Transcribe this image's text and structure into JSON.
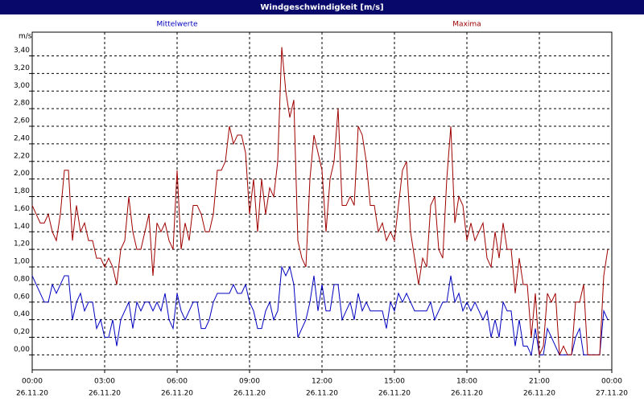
{
  "chart_data": {
    "type": "line",
    "title": "Windgeschwindigkeit [m/s]",
    "y_label": "m/s",
    "legend": "top",
    "grid": true,
    "x": [
      0,
      10,
      20,
      30,
      40,
      50,
      60,
      70,
      80,
      90,
      100,
      110,
      120,
      130,
      140,
      150,
      160,
      170,
      180,
      190,
      200,
      210,
      220,
      230,
      240,
      250,
      260,
      270,
      280,
      290,
      300,
      310,
      320,
      330,
      340,
      350,
      360,
      370,
      380,
      390,
      400,
      410,
      420,
      430,
      440,
      450,
      460,
      470,
      480,
      490,
      500,
      510,
      520,
      530,
      540,
      550,
      560,
      570,
      580,
      590,
      600,
      610,
      620,
      630,
      640,
      650,
      660,
      670,
      680,
      690,
      700,
      710,
      720,
      730,
      740,
      750,
      760,
      770,
      780,
      790,
      800,
      810,
      820,
      830,
      840,
      850,
      860,
      870,
      880,
      890,
      900,
      910,
      920,
      930,
      940,
      950,
      960,
      970,
      980,
      990,
      1000,
      1010,
      1020,
      1030,
      1040,
      1050,
      1060,
      1070,
      1080,
      1090,
      1100,
      1110,
      1120,
      1130,
      1140,
      1150,
      1160,
      1170,
      1180,
      1190,
      1200,
      1210,
      1220,
      1230,
      1240,
      1250,
      1260,
      1270,
      1280,
      1290,
      1300,
      1310,
      1320,
      1330,
      1340,
      1350,
      1360,
      1370,
      1380,
      1390,
      1400,
      1410,
      1420,
      1430
    ],
    "series": [
      {
        "name": "Mittelwerte",
        "color": "#0000c0",
        "values": [
          0.9,
          0.8,
          0.7,
          0.6,
          0.6,
          0.8,
          0.7,
          0.8,
          0.9,
          0.9,
          0.4,
          0.6,
          0.7,
          0.5,
          0.6,
          0.6,
          0.3,
          0.4,
          0.2,
          0.2,
          0.4,
          0.1,
          0.4,
          0.5,
          0.6,
          0.3,
          0.6,
          0.5,
          0.6,
          0.6,
          0.5,
          0.6,
          0.5,
          0.7,
          0.4,
          0.3,
          0.7,
          0.5,
          0.4,
          0.5,
          0.6,
          0.6,
          0.3,
          0.3,
          0.4,
          0.6,
          0.7,
          0.7,
          0.7,
          0.7,
          0.8,
          0.7,
          0.7,
          0.8,
          0.6,
          0.5,
          0.3,
          0.3,
          0.5,
          0.6,
          0.4,
          0.5,
          1.0,
          0.9,
          1.0,
          0.8,
          0.2,
          0.3,
          0.4,
          0.6,
          0.9,
          0.5,
          0.8,
          0.5,
          0.5,
          0.8,
          0.8,
          0.4,
          0.5,
          0.6,
          0.4,
          0.7,
          0.5,
          0.6,
          0.5,
          0.5,
          0.5,
          0.5,
          0.3,
          0.6,
          0.5,
          0.7,
          0.6,
          0.7,
          0.6,
          0.5,
          0.5,
          0.5,
          0.5,
          0.6,
          0.4,
          0.5,
          0.6,
          0.6,
          0.9,
          0.6,
          0.7,
          0.5,
          0.6,
          0.5,
          0.6,
          0.5,
          0.4,
          0.5,
          0.2,
          0.4,
          0.2,
          0.6,
          0.5,
          0.5,
          0.1,
          0.4,
          0.1,
          0.1,
          0.0,
          0.3,
          0.0,
          0.0,
          0.3,
          0.2,
          0.1,
          0.0,
          0.0,
          0.0,
          0.0,
          0.2,
          0.3,
          0.0,
          0.0,
          0.0,
          0.0,
          0.0,
          0.5,
          0.4
        ]
      },
      {
        "name": "Maxima",
        "color": "#a00000",
        "values": [
          1.7,
          1.6,
          1.5,
          1.5,
          1.6,
          1.4,
          1.3,
          1.6,
          2.1,
          2.1,
          1.3,
          1.7,
          1.4,
          1.5,
          1.3,
          1.3,
          1.1,
          1.1,
          1.0,
          1.1,
          1.0,
          0.8,
          1.2,
          1.3,
          1.8,
          1.4,
          1.2,
          1.2,
          1.4,
          1.6,
          0.9,
          1.5,
          1.4,
          1.5,
          1.3,
          1.2,
          2.1,
          1.2,
          1.5,
          1.3,
          1.7,
          1.7,
          1.6,
          1.4,
          1.4,
          1.6,
          2.1,
          2.1,
          2.2,
          2.6,
          2.4,
          2.5,
          2.5,
          2.3,
          1.6,
          2.0,
          1.4,
          2.0,
          1.6,
          1.9,
          1.8,
          2.2,
          3.5,
          3.0,
          2.7,
          2.9,
          1.3,
          1.1,
          1.0,
          2.0,
          2.5,
          2.3,
          2.1,
          1.4,
          2.0,
          2.2,
          2.8,
          1.7,
          1.7,
          1.8,
          1.7,
          2.6,
          2.5,
          2.2,
          1.7,
          1.7,
          1.4,
          1.5,
          1.3,
          1.4,
          1.3,
          1.7,
          2.1,
          2.2,
          1.4,
          1.1,
          0.8,
          1.1,
          1.0,
          1.7,
          1.8,
          1.2,
          1.1,
          2.0,
          2.6,
          1.5,
          1.8,
          1.7,
          1.3,
          1.5,
          1.3,
          1.4,
          1.5,
          1.1,
          1.0,
          1.4,
          1.1,
          1.5,
          1.2,
          1.2,
          0.7,
          1.1,
          0.8,
          0.8,
          0.2,
          0.7,
          0.0,
          0.1,
          0.7,
          0.6,
          0.7,
          0.0,
          0.1,
          0.0,
          0.0,
          0.6,
          0.6,
          0.8,
          0.0,
          0.0,
          0.0,
          0.0,
          0.9,
          1.2
        ]
      }
    ],
    "xlim": [
      0,
      1440
    ],
    "xticks": [
      {
        "value": 0,
        "label": "00:00"
      },
      {
        "value": 180,
        "label": "03:00"
      },
      {
        "value": 360,
        "label": "06:00"
      },
      {
        "value": 540,
        "label": "09:00"
      },
      {
        "value": 720,
        "label": "12:00"
      },
      {
        "value": 900,
        "label": "15:00"
      },
      {
        "value": 1080,
        "label": "18:00"
      },
      {
        "value": 1260,
        "label": "21:00"
      },
      {
        "value": 1440,
        "label": "00:00"
      }
    ],
    "xtick_dates": [
      "26.11.20",
      "26.11.20",
      "26.11.20",
      "26.11.20",
      "26.11.20",
      "26.11.20",
      "26.11.20",
      "26.11.20",
      "27.11.20"
    ],
    "ylim": [
      -0.17,
      3.67
    ],
    "yticks": [
      {
        "value": 0,
        "label": "0,00"
      },
      {
        "value": 0.2,
        "label": "0,20"
      },
      {
        "value": 0.4,
        "label": "0,40"
      },
      {
        "value": 0.6,
        "label": "0,60"
      },
      {
        "value": 0.8,
        "label": "0,80"
      },
      {
        "value": 1.0,
        "label": "1,00"
      },
      {
        "value": 1.2,
        "label": "1,20"
      },
      {
        "value": 1.4,
        "label": "1,40"
      },
      {
        "value": 1.6,
        "label": "1,60"
      },
      {
        "value": 1.8,
        "label": "1,80"
      },
      {
        "value": 2.0,
        "label": "2,00"
      },
      {
        "value": 2.2,
        "label": "2,20"
      },
      {
        "value": 2.4,
        "label": "2,40"
      },
      {
        "value": 2.6,
        "label": "2,60"
      },
      {
        "value": 2.8,
        "label": "2,80"
      },
      {
        "value": 3.0,
        "label": "3,00"
      },
      {
        "value": 3.2,
        "label": "3,20"
      },
      {
        "value": 3.4,
        "label": "3,40"
      }
    ]
  }
}
